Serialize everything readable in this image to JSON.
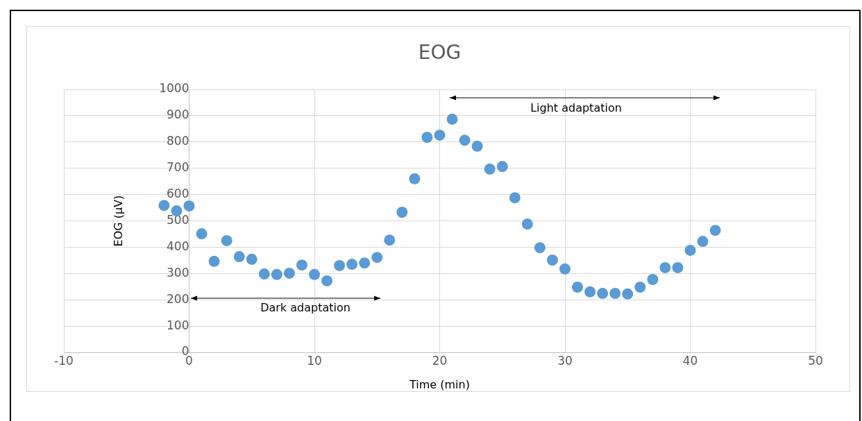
{
  "chart_data": {
    "type": "scatter",
    "title": "EOG",
    "xlabel": "Time (min)",
    "ylabel": "EOG (µV)",
    "x": [
      -2,
      -1,
      0,
      1,
      2,
      3,
      4,
      5,
      6,
      7,
      8,
      9,
      10,
      11,
      12,
      13,
      14,
      15,
      16,
      17,
      18,
      19,
      20,
      21,
      22,
      23,
      24,
      25,
      26,
      27,
      28,
      29,
      30,
      31,
      32,
      33,
      34,
      35,
      36,
      37,
      38,
      39,
      40,
      41,
      42
    ],
    "series": [
      {
        "color": "#5b9bd5",
        "values": [
          559,
          538,
          557,
          451,
          346,
          425,
          364,
          354,
          298,
          296,
          301,
          332,
          296,
          272,
          330,
          335,
          340,
          361,
          427,
          533,
          660,
          818,
          826,
          887,
          807,
          784,
          697,
          707,
          588,
          488,
          398,
          351,
          317,
          248,
          230,
          224,
          224,
          222,
          248,
          277,
          322,
          322,
          388,
          422,
          464
        ]
      }
    ],
    "xlim": [
      -10,
      50
    ],
    "xticks": [
      -10,
      0,
      10,
      20,
      30,
      40,
      50
    ],
    "ylim": [
      0,
      1000
    ],
    "yticks": [
      0,
      100,
      200,
      300,
      400,
      500,
      600,
      700,
      800,
      900,
      1000
    ],
    "grid": true,
    "legend": false,
    "marker": "circle",
    "annotations": [
      "Dark adaptation",
      "Light adaptation"
    ]
  }
}
